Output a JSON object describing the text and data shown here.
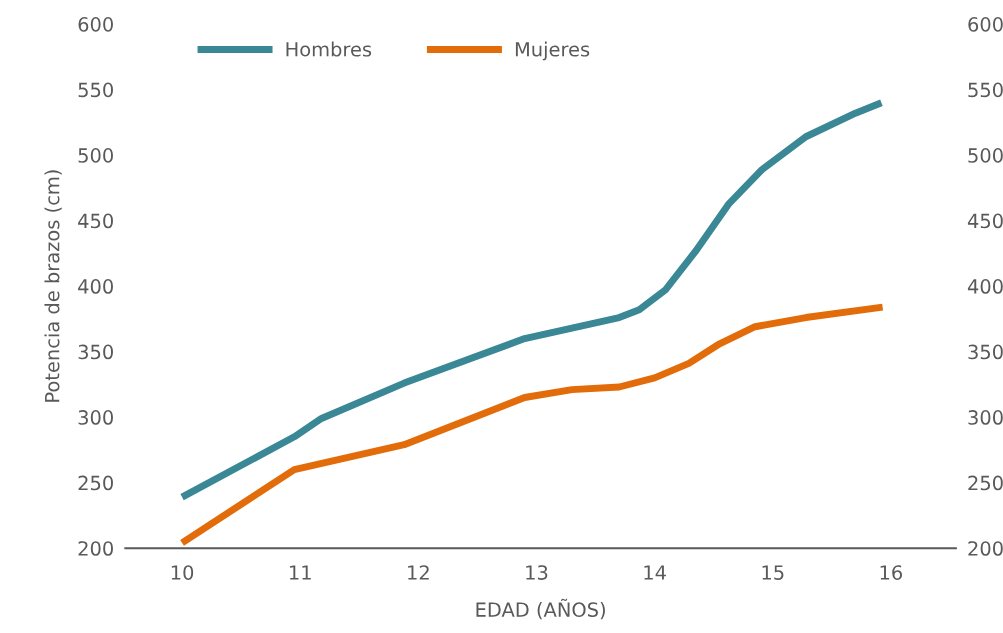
{
  "chart_data": {
    "type": "line",
    "xlabel": "EDAD (AÑOS)",
    "ylabel": "Potencia de brazos (cm)",
    "xlim": [
      9.52,
      16.55
    ],
    "xticks": [
      10,
      11,
      12,
      13,
      14,
      15,
      16
    ],
    "ylim": [
      200,
      600
    ],
    "yticks": [
      200,
      250,
      300,
      350,
      400,
      450,
      500,
      550,
      600
    ],
    "y2lim": [
      200,
      600
    ],
    "y2ticks": [
      200,
      250,
      300,
      350,
      400,
      450,
      500,
      550,
      600
    ],
    "grid": false,
    "legend": "top left",
    "marker": "none",
    "line_style": "solid",
    "series": [
      {
        "name": "Hombres",
        "color": "#3a8795",
        "x": [
          10,
          10.95,
          11.18,
          11.88,
          12.9,
          13.3,
          13.7,
          13.87,
          14.09,
          14.35,
          14.63,
          14.91,
          15.28,
          15.7,
          15.92
        ],
        "values": [
          239,
          285,
          299,
          326,
          360,
          368,
          376,
          382,
          397,
          427,
          463,
          489,
          514,
          532,
          540
        ]
      },
      {
        "name": "Mujeres",
        "color": "#e36c0a",
        "x": [
          10,
          10.95,
          11.88,
          12.9,
          13.3,
          13.7,
          14.0,
          14.29,
          14.55,
          14.85,
          15.28,
          15.93
        ],
        "values": [
          204,
          260,
          279,
          315,
          321,
          323,
          330,
          341,
          356,
          369,
          376,
          384
        ]
      }
    ]
  }
}
